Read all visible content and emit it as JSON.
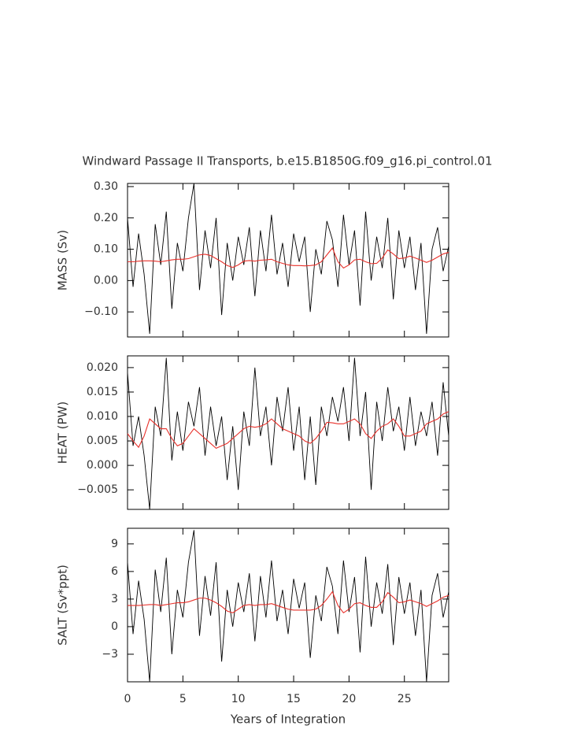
{
  "chart_data": [
    {
      "type": "line",
      "title": "Windward Passage II Transports, b.e15.B1850G.f09_g16.pi_control.01",
      "ylabel": "MASS (Sv)",
      "x": [
        0,
        0.5,
        1,
        1.5,
        2,
        2.5,
        3,
        3.5,
        4,
        4.5,
        5,
        5.5,
        6,
        6.5,
        7,
        7.5,
        8,
        8.5,
        9,
        9.5,
        10,
        10.5,
        11,
        11.5,
        12,
        12.5,
        13,
        13.5,
        14,
        14.5,
        15,
        15.5,
        16,
        16.5,
        17,
        17.5,
        18,
        18.5,
        19,
        19.5,
        20,
        20.5,
        21,
        21.5,
        22,
        22.5,
        23,
        23.5,
        24,
        24.5,
        25,
        25.5,
        26,
        26.5,
        27,
        27.5,
        28,
        28.5,
        29
      ],
      "xlim": [
        0,
        29
      ],
      "ylim": [
        -0.18,
        0.31
      ],
      "yticks": [
        {
          "value": -0.1,
          "label": "−0.10"
        },
        {
          "value": 0,
          "label": "0.00"
        },
        {
          "value": 0.1,
          "label": "0.10"
        },
        {
          "value": 0.2,
          "label": "0.20"
        },
        {
          "value": 0.3,
          "label": "0.30"
        }
      ],
      "series": [
        {
          "color": "#000000",
          "values": [
            0.2,
            -0.02,
            0.15,
            0.02,
            -0.17,
            0.18,
            0.05,
            0.22,
            -0.09,
            0.12,
            0.03,
            0.2,
            0.31,
            -0.03,
            0.16,
            0.04,
            0.2,
            -0.11,
            0.12,
            0.0,
            0.14,
            0.05,
            0.17,
            -0.05,
            0.16,
            0.03,
            0.21,
            0.02,
            0.12,
            -0.02,
            0.15,
            0.06,
            0.14,
            -0.1,
            0.1,
            0.02,
            0.19,
            0.13,
            -0.02,
            0.21,
            0.05,
            0.16,
            -0.08,
            0.22,
            0.0,
            0.14,
            0.04,
            0.2,
            -0.06,
            0.16,
            0.04,
            0.14,
            -0.03,
            0.12,
            -0.17,
            0.1,
            0.17,
            0.03,
            0.11
          ]
        },
        {
          "color": "#e8302a",
          "values": [
            0.06,
            0.06,
            0.062,
            0.063,
            0.063,
            0.062,
            0.06,
            0.063,
            0.066,
            0.068,
            0.068,
            0.07,
            0.076,
            0.082,
            0.084,
            0.08,
            0.07,
            0.06,
            0.048,
            0.042,
            0.05,
            0.062,
            0.064,
            0.062,
            0.065,
            0.066,
            0.068,
            0.06,
            0.055,
            0.05,
            0.048,
            0.048,
            0.047,
            0.048,
            0.05,
            0.06,
            0.082,
            0.104,
            0.06,
            0.04,
            0.05,
            0.066,
            0.068,
            0.06,
            0.054,
            0.055,
            0.072,
            0.098,
            0.085,
            0.07,
            0.072,
            0.078,
            0.072,
            0.065,
            0.058,
            0.065,
            0.075,
            0.085,
            0.09
          ]
        }
      ]
    },
    {
      "type": "line",
      "ylabel": "HEAT (PW)",
      "x": [
        0,
        0.5,
        1,
        1.5,
        2,
        2.5,
        3,
        3.5,
        4,
        4.5,
        5,
        5.5,
        6,
        6.5,
        7,
        7.5,
        8,
        8.5,
        9,
        9.5,
        10,
        10.5,
        11,
        11.5,
        12,
        12.5,
        13,
        13.5,
        14,
        14.5,
        15,
        15.5,
        16,
        16.5,
        17,
        17.5,
        18,
        18.5,
        19,
        19.5,
        20,
        20.5,
        21,
        21.5,
        22,
        22.5,
        23,
        23.5,
        24,
        24.5,
        25,
        25.5,
        26,
        26.5,
        27,
        27.5,
        28,
        28.5,
        29
      ],
      "xlim": [
        0,
        29
      ],
      "ylim": [
        -0.009,
        0.0224
      ],
      "yticks": [
        {
          "value": -0.005,
          "label": "−0.005"
        },
        {
          "value": 0,
          "label": "0.000"
        },
        {
          "value": 0.005,
          "label": "0.005"
        },
        {
          "value": 0.01,
          "label": "0.010"
        },
        {
          "value": 0.015,
          "label": "0.015"
        },
        {
          "value": 0.02,
          "label": "0.020"
        }
      ],
      "series": [
        {
          "color": "#000000",
          "values": [
            0.019,
            0.004,
            0.01,
            0.002,
            -0.009,
            0.012,
            0.006,
            0.022,
            0.001,
            0.011,
            0.003,
            0.013,
            0.008,
            0.016,
            0.002,
            0.012,
            0.004,
            0.01,
            -0.003,
            0.008,
            -0.005,
            0.011,
            0.004,
            0.02,
            0.006,
            0.012,
            0.0,
            0.014,
            0.007,
            0.016,
            0.003,
            0.012,
            -0.003,
            0.01,
            -0.004,
            0.012,
            0.006,
            0.014,
            0.009,
            0.016,
            0.005,
            0.022,
            0.006,
            0.015,
            -0.005,
            0.013,
            0.005,
            0.016,
            0.007,
            0.012,
            0.003,
            0.014,
            0.004,
            0.011,
            0.006,
            0.013,
            0.002,
            0.017,
            0.006
          ]
        },
        {
          "color": "#e8302a",
          "values": [
            0.0065,
            0.005,
            0.0037,
            0.006,
            0.0095,
            0.0085,
            0.0075,
            0.0075,
            0.0055,
            0.004,
            0.0045,
            0.006,
            0.0075,
            0.0065,
            0.0055,
            0.0045,
            0.0035,
            0.004,
            0.0045,
            0.0055,
            0.0065,
            0.0075,
            0.008,
            0.0078,
            0.008,
            0.0085,
            0.0095,
            0.0085,
            0.0075,
            0.007,
            0.0065,
            0.006,
            0.005,
            0.0045,
            0.0055,
            0.007,
            0.0088,
            0.0087,
            0.0085,
            0.0085,
            0.009,
            0.0095,
            0.0085,
            0.0065,
            0.0055,
            0.007,
            0.008,
            0.0085,
            0.0095,
            0.008,
            0.006,
            0.006,
            0.0065,
            0.007,
            0.0085,
            0.009,
            0.0095,
            0.0105,
            0.011
          ]
        }
      ]
    },
    {
      "type": "line",
      "ylabel": "SALT (Sv*ppt)",
      "xlabel": "Years of Integration",
      "x": [
        0,
        0.5,
        1,
        1.5,
        2,
        2.5,
        3,
        3.5,
        4,
        4.5,
        5,
        5.5,
        6,
        6.5,
        7,
        7.5,
        8,
        8.5,
        9,
        9.5,
        10,
        10.5,
        11,
        11.5,
        12,
        12.5,
        13,
        13.5,
        14,
        14.5,
        15,
        15.5,
        16,
        16.5,
        17,
        17.5,
        18,
        18.5,
        19,
        19.5,
        20,
        20.5,
        21,
        21.5,
        22,
        22.5,
        23,
        23.5,
        24,
        24.5,
        25,
        25.5,
        26,
        26.5,
        27,
        27.5,
        28,
        28.5,
        29
      ],
      "xlim": [
        0,
        29
      ],
      "xticks": [
        0,
        5,
        10,
        15,
        20,
        25
      ],
      "ylim": [
        -6,
        10.7
      ],
      "yticks": [
        {
          "value": -3,
          "label": "−3"
        },
        0,
        3,
        6,
        9
      ],
      "series": [
        {
          "color": "#000000",
          "values": [
            7.0,
            -0.8,
            5.0,
            0.8,
            -6.0,
            6.2,
            1.6,
            7.5,
            -3.0,
            4.0,
            1.0,
            7.0,
            10.5,
            -1.0,
            5.5,
            1.2,
            7.0,
            -3.8,
            4.0,
            0.0,
            4.8,
            1.6,
            5.8,
            -1.6,
            5.5,
            1.0,
            7.2,
            0.6,
            4.0,
            -0.8,
            5.2,
            2.0,
            4.8,
            -3.4,
            3.4,
            0.6,
            6.5,
            4.4,
            -0.8,
            7.2,
            1.6,
            5.4,
            -2.8,
            7.6,
            0.0,
            4.8,
            1.4,
            6.8,
            -2.0,
            5.4,
            1.4,
            4.8,
            -1.0,
            4.0,
            -6.0,
            3.4,
            5.8,
            1.0,
            3.8
          ]
        },
        {
          "color": "#e8302a",
          "values": [
            2.3,
            2.3,
            2.3,
            2.35,
            2.4,
            2.4,
            2.3,
            2.4,
            2.5,
            2.6,
            2.6,
            2.7,
            2.9,
            3.1,
            3.1,
            2.9,
            2.6,
            2.2,
            1.7,
            1.5,
            1.9,
            2.3,
            2.4,
            2.3,
            2.4,
            2.4,
            2.5,
            2.3,
            2.1,
            1.9,
            1.8,
            1.8,
            1.8,
            1.8,
            1.9,
            2.3,
            3.0,
            3.8,
            2.3,
            1.5,
            1.9,
            2.5,
            2.6,
            2.3,
            2.1,
            2.1,
            2.7,
            3.7,
            3.2,
            2.6,
            2.7,
            2.9,
            2.7,
            2.5,
            2.2,
            2.5,
            2.8,
            3.2,
            3.4
          ]
        }
      ]
    }
  ]
}
